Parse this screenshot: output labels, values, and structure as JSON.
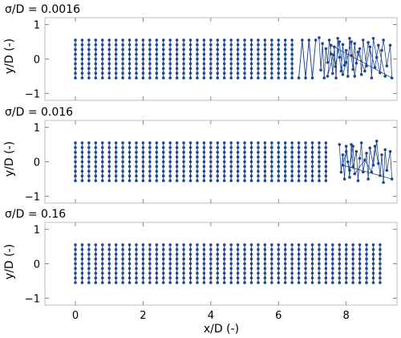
{
  "chart_data": [
    {
      "type": "scatter",
      "title": "σ/D = 0.0016",
      "ylabel": "y/D (-)",
      "xlabel": "",
      "xlim": [
        -0.9,
        9.5
      ],
      "ylim": [
        -1.2,
        1.2
      ],
      "yticks": [
        "−1",
        "0",
        "1"
      ],
      "xticks": [
        "0",
        "2",
        "4",
        "6",
        "8"
      ],
      "show_xtick_labels": false,
      "grid": false,
      "marker_color": "#1f4690",
      "columns": {
        "x_start": 0.0,
        "x_spacing": 0.2,
        "count": 33,
        "y_levels": [
          -0.55,
          -0.413,
          -0.275,
          -0.138,
          0.0,
          0.138,
          0.275,
          0.413,
          0.55
        ]
      },
      "zigzag": [
        [
          6.6,
          -0.55
        ],
        [
          6.7,
          0.55
        ],
        [
          6.8,
          -0.55
        ],
        [
          6.9,
          0.55
        ],
        [
          7.0,
          -0.55
        ],
        [
          7.1,
          0.55
        ]
      ],
      "scatter_points": [
        [
          7.2,
          0.62
        ],
        [
          7.25,
          -0.32
        ],
        [
          7.3,
          0.45
        ],
        [
          7.35,
          -0.55
        ],
        [
          7.4,
          0.3
        ],
        [
          7.45,
          -0.1
        ],
        [
          7.5,
          0.55
        ],
        [
          7.55,
          0.15
        ],
        [
          7.6,
          -0.42
        ],
        [
          7.65,
          0.35
        ],
        [
          7.7,
          -0.55
        ],
        [
          7.75,
          0.6
        ],
        [
          7.8,
          0.05
        ],
        [
          7.85,
          -0.35
        ],
        [
          7.9,
          0.42
        ],
        [
          7.95,
          -0.18
        ],
        [
          8.0,
          0.25
        ],
        [
          8.05,
          -0.5
        ],
        [
          8.1,
          0.6
        ],
        [
          8.15,
          0.1
        ],
        [
          8.2,
          -0.3
        ],
        [
          8.25,
          0.45
        ],
        [
          8.3,
          -0.12
        ],
        [
          8.4,
          0.3
        ],
        [
          8.45,
          -0.45
        ],
        [
          8.5,
          0.55
        ],
        [
          8.6,
          -0.2
        ],
        [
          8.7,
          0.35
        ],
        [
          8.75,
          -0.55
        ],
        [
          8.8,
          0.6
        ],
        [
          8.9,
          0.05
        ],
        [
          9.0,
          -0.4
        ],
        [
          9.05,
          0.25
        ],
        [
          9.1,
          0.55
        ],
        [
          9.2,
          -0.2
        ],
        [
          9.3,
          0.4
        ],
        [
          9.35,
          -0.55
        ],
        [
          7.55,
          0.4
        ],
        [
          7.45,
          -0.5
        ],
        [
          7.62,
          0.12
        ],
        [
          7.68,
          -0.22
        ],
        [
          7.8,
          0.5
        ],
        [
          7.9,
          -0.45
        ],
        [
          8.0,
          -0.1
        ],
        [
          8.15,
          0.5
        ],
        [
          8.25,
          -0.5
        ],
        [
          8.35,
          0.2
        ],
        [
          8.55,
          -0.35
        ],
        [
          8.65,
          0.48
        ],
        [
          8.85,
          -0.25
        ],
        [
          8.95,
          0.4
        ],
        [
          9.15,
          -0.5
        ]
      ]
    },
    {
      "type": "scatter",
      "title": "σ/D = 0.016",
      "ylabel": "y/D (-)",
      "xlabel": "",
      "xlim": [
        -0.9,
        9.5
      ],
      "ylim": [
        -1.2,
        1.2
      ],
      "yticks": [
        "−1",
        "0",
        "1"
      ],
      "xticks": [
        "0",
        "2",
        "4",
        "6",
        "8"
      ],
      "show_xtick_labels": false,
      "grid": false,
      "marker_color": "#1f4690",
      "columns": {
        "x_start": 0.0,
        "x_spacing": 0.2,
        "count": 38,
        "y_levels": [
          -0.55,
          -0.413,
          -0.275,
          -0.138,
          0.0,
          0.138,
          0.275,
          0.413,
          0.55
        ]
      },
      "zigzag": [],
      "scatter_points": [
        [
          7.8,
          0.5
        ],
        [
          7.85,
          -0.3
        ],
        [
          7.9,
          0.2
        ],
        [
          7.95,
          -0.5
        ],
        [
          8.0,
          0.45
        ],
        [
          8.05,
          0.0
        ],
        [
          8.1,
          -0.45
        ],
        [
          8.15,
          0.5
        ],
        [
          8.2,
          -0.15
        ],
        [
          8.3,
          0.3
        ],
        [
          8.35,
          -0.55
        ],
        [
          8.4,
          0.1
        ],
        [
          8.45,
          0.55
        ],
        [
          8.5,
          -0.3
        ],
        [
          8.6,
          0.25
        ],
        [
          8.65,
          -0.5
        ],
        [
          8.7,
          0.4
        ],
        [
          8.8,
          -0.1
        ],
        [
          8.9,
          0.6
        ],
        [
          9.0,
          -0.4
        ],
        [
          9.05,
          0.2
        ],
        [
          9.1,
          -0.6
        ],
        [
          9.15,
          0.35
        ],
        [
          9.2,
          -0.25
        ],
        [
          9.3,
          0.3
        ],
        [
          9.35,
          -0.5
        ],
        [
          7.9,
          -0.1
        ],
        [
          8.0,
          0.3
        ],
        [
          8.1,
          -0.25
        ],
        [
          8.2,
          0.45
        ],
        [
          8.25,
          -0.35
        ],
        [
          8.55,
          0.05
        ],
        [
          8.75,
          -0.3
        ],
        [
          8.85,
          0.45
        ],
        [
          8.95,
          -0.05
        ]
      ]
    },
    {
      "type": "scatter",
      "title": "σ/D = 0.16",
      "ylabel": "y/D (-)",
      "xlabel": "x/D (-)",
      "xlim": [
        -0.9,
        9.5
      ],
      "ylim": [
        -1.2,
        1.2
      ],
      "yticks": [
        "−1",
        "0",
        "1"
      ],
      "xticks": [
        "0",
        "2",
        "4",
        "6",
        "8"
      ],
      "show_xtick_labels": true,
      "grid": false,
      "marker_color": "#1f4690",
      "columns": {
        "x_start": 0.0,
        "x_spacing": 0.2,
        "count": 46,
        "y_levels": [
          -0.55,
          -0.413,
          -0.275,
          -0.138,
          0.0,
          0.138,
          0.275,
          0.413,
          0.55
        ]
      },
      "zigzag": [],
      "scatter_points": []
    }
  ]
}
